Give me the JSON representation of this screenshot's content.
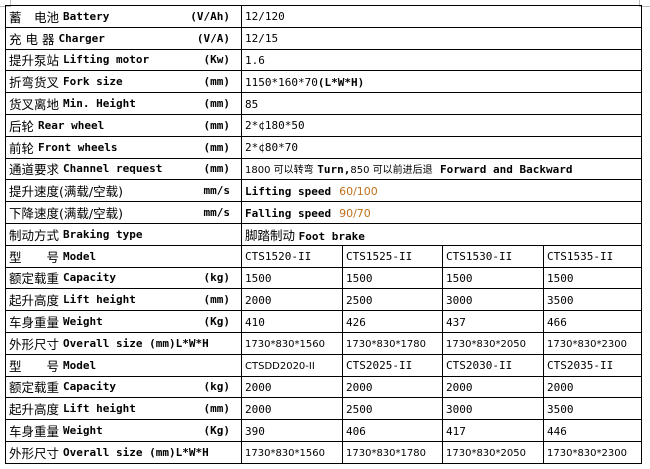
{
  "colors": {
    "speed_value": "#c0701a",
    "border": "#000000"
  },
  "specs": [
    {
      "cn": "蓄　电池",
      "en": "Battery",
      "unit": "(V/Ah)",
      "value": "12/120"
    },
    {
      "cn": "充 电 器",
      "en": "Charger",
      "unit": "(V/A)",
      "value": "12/15"
    },
    {
      "cn": "提升泵站",
      "en": "Lifting motor",
      "unit": "(Kw)",
      "value": "1.6"
    },
    {
      "cn": "折弯货叉",
      "en": "Fork size",
      "unit": "(mm)",
      "value": "1150*160*70",
      "value_bold": "(L*W*H)"
    },
    {
      "cn": "货叉离地",
      "en": "Min. Height",
      "unit": "(mm)",
      "value": "85"
    },
    {
      "cn": "后轮",
      "en": "Rear wheel",
      "unit": "(mm)",
      "value": "2*¢180*50"
    },
    {
      "cn": "前轮",
      "en": "Front wheels",
      "unit": "(mm)",
      "value": "2*¢80*70"
    }
  ],
  "channel": {
    "cn": "通道要求",
    "en": "Channel request",
    "unit": "(mm)",
    "v1": "1800 可以转弯",
    "v1_bold": "Turn,",
    "v2": "850 可以前进后退",
    "v2_bold": "Forward and Backward"
  },
  "lifting_speed": {
    "cn": "提升速度(满载/空载)",
    "unit": "mm/s",
    "label": "Lifting speed",
    "value": "60/100"
  },
  "falling_speed": {
    "cn": "下降速度(满载/空载)",
    "unit": "mm/s",
    "label": "Falling speed",
    "value": "90/70"
  },
  "braking": {
    "cn": "制动方式",
    "en": "Braking type",
    "value_cn": "脚踏制动",
    "value_en": "Foot brake"
  },
  "groups": [
    {
      "rows": [
        {
          "cn": "型　　号",
          "en": "Model",
          "unit": "",
          "values": [
            "CTS1520-II",
            "CTS1525-II",
            "CTS1530-II",
            "CTS1535-II"
          ]
        },
        {
          "cn": "额定载重",
          "en": "Capacity",
          "unit": "(kg)",
          "values": [
            "1500",
            "1500",
            "1500",
            "1500"
          ]
        },
        {
          "cn": "起升高度",
          "en": "Lift height",
          "unit": "(mm)",
          "values": [
            "2000",
            "2500",
            "3000",
            "3500"
          ]
        },
        {
          "cn": "车身重量",
          "en": "Weight",
          "unit": "(Kg)",
          "values": [
            "410",
            "426",
            "437",
            "466"
          ]
        },
        {
          "cn": "外形尺寸",
          "en": "Overall size (mm)L*W*H",
          "unit": "",
          "values": [
            "1730*830*1560",
            "1730*830*1780",
            "1730*830*2050",
            "1730*830*2300"
          ]
        }
      ]
    },
    {
      "rows": [
        {
          "cn": "型　　号",
          "en": "Model",
          "unit": "",
          "values": [
            "CTSDD2020-II",
            "CTS2025-II",
            "CTS2030-II",
            "CTS2035-II"
          ]
        },
        {
          "cn": "额定载重",
          "en": "Capacity",
          "unit": "(kg)",
          "values": [
            "2000",
            "2000",
            "2000",
            "2000"
          ]
        },
        {
          "cn": "起升高度",
          "en": "Lift height",
          "unit": "(mm)",
          "values": [
            "2000",
            "2500",
            "3000",
            "3500"
          ]
        },
        {
          "cn": "车身重量",
          "en": "Weight",
          "unit": "(Kg)",
          "values": [
            "390",
            "406",
            "417",
            "446"
          ]
        },
        {
          "cn": "外形尺寸",
          "en": "Overall size (mm)L*W*H",
          "unit": "",
          "values": [
            "1730*830*1560",
            "1730*830*1780",
            "1730*830*2050",
            "1730*830*2300"
          ]
        }
      ]
    }
  ]
}
